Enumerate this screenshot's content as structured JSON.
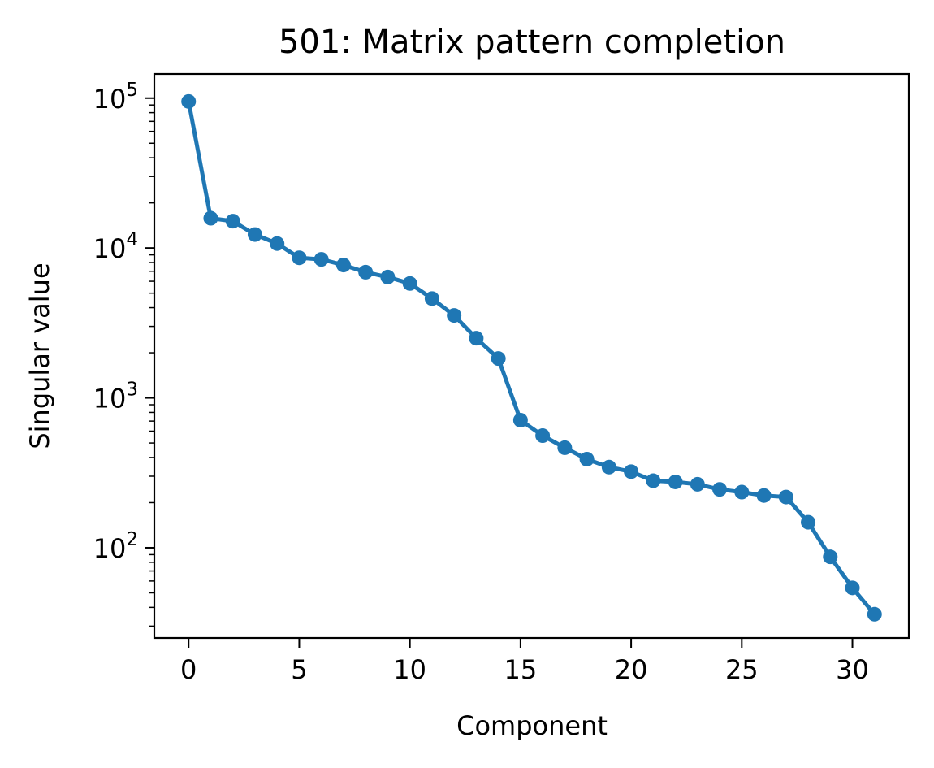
{
  "chart_data": {
    "type": "line",
    "title": "501: Matrix pattern completion",
    "xlabel": "Component",
    "ylabel": "Singular value",
    "yscale": "log",
    "xlim": [
      -1.55,
      32.55
    ],
    "ylim": [
      25,
      145000
    ],
    "x_ticks": [
      0,
      5,
      10,
      15,
      20,
      25,
      30
    ],
    "y_ticks": [
      {
        "base": "10",
        "exp": "2",
        "value": 100
      },
      {
        "base": "10",
        "exp": "3",
        "value": 1000
      },
      {
        "base": "10",
        "exp": "4",
        "value": 10000
      },
      {
        "base": "10",
        "exp": "5",
        "value": 100000
      }
    ],
    "grid": false,
    "marker": "circle",
    "color": "#1f77b4",
    "series": [
      {
        "x": [
          0,
          1,
          2,
          3,
          4,
          5,
          6,
          7,
          8,
          9,
          10,
          11,
          12,
          13,
          14,
          15,
          16,
          17,
          18,
          19,
          20,
          21,
          22,
          23,
          24,
          25,
          26,
          27,
          28,
          29,
          30,
          31
        ],
        "y": [
          95000,
          15800,
          15100,
          12300,
          10700,
          8600,
          8400,
          7700,
          6900,
          6400,
          5800,
          4600,
          3550,
          2500,
          1830,
          710,
          560,
          465,
          390,
          345,
          322,
          280,
          275,
          265,
          245,
          235,
          223,
          218,
          148,
          87,
          54,
          36
        ]
      }
    ]
  }
}
